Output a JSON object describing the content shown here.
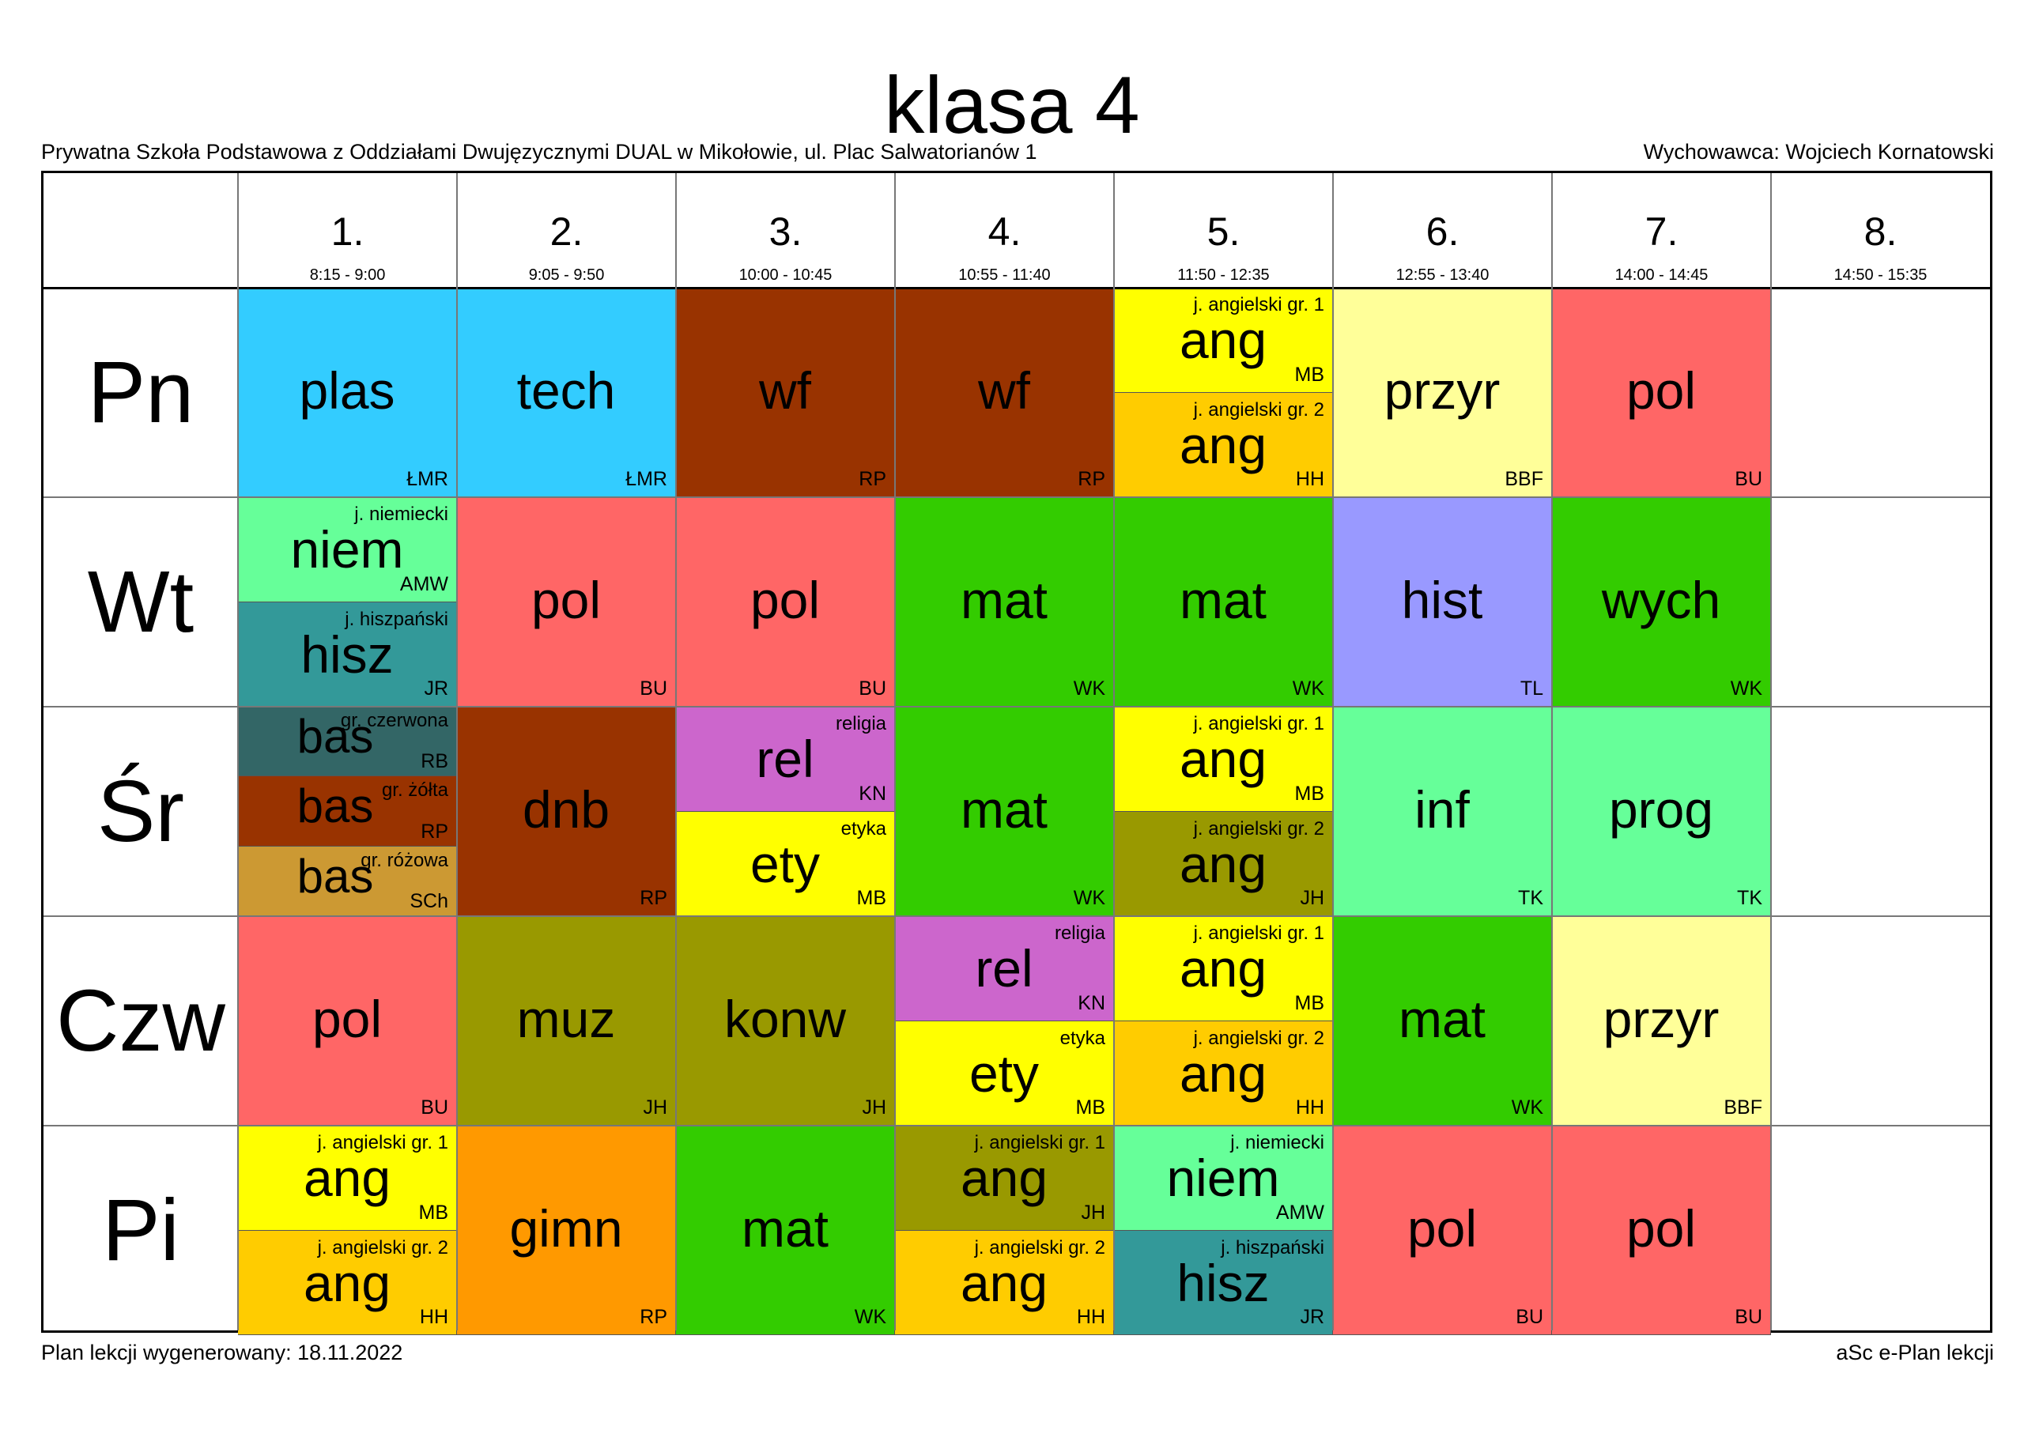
{
  "title": "klasa 4",
  "school": "Prywatna Szkoła Podstawowa z Oddziałami Dwujęzycznymi DUAL w Mikołowie, ul. Plac Salwatorianów 1",
  "teacher": "Wychowawca: Wojciech Kornatowski",
  "footer_left": "Plan lekcji wygenerowany: 18.11.2022",
  "footer_right": "aSc e-Plan lekcji",
  "periods": [
    {
      "num": "1.",
      "time": "8:15 - 9:00"
    },
    {
      "num": "2.",
      "time": "9:05 - 9:50"
    },
    {
      "num": "3.",
      "time": "10:00 - 10:45"
    },
    {
      "num": "4.",
      "time": "10:55 - 11:40"
    },
    {
      "num": "5.",
      "time": "11:50 - 12:35"
    },
    {
      "num": "6.",
      "time": "12:55 - 13:40"
    },
    {
      "num": "7.",
      "time": "14:00 - 14:45"
    },
    {
      "num": "8.",
      "time": "14:50 - 15:35"
    }
  ],
  "days": [
    "Pn",
    "Wt",
    "Śr",
    "Czw",
    "Pi"
  ],
  "colors": {
    "plas": "#33ccff",
    "tech": "#33ccff",
    "wf": "#993300",
    "ang_yellow": "#ffff00",
    "ang_orange": "#ffcc00",
    "przyr": "#ffff99",
    "pol": "#ff6666",
    "niem": "#66ff99",
    "hisz": "#339999",
    "mat": "#33cc00",
    "hist": "#9999ff",
    "wych": "#33cc00",
    "bas_red": "#336666",
    "bas_yellow": "#993300",
    "bas_pink": "#cc9933",
    "dnb": "#993300",
    "rel": "#cc66cc",
    "ety": "#ffff00",
    "ang_olive": "#999900",
    "inf": "#66ff99",
    "prog": "#66ff99",
    "muz": "#999900",
    "konw": "#999900",
    "gimn": "#ff9900"
  },
  "schedule": [
    [
      [
        {
          "subject": "plas",
          "teacher": "ŁMR",
          "color": "#33ccff"
        }
      ],
      [
        {
          "subject": "tech",
          "teacher": "ŁMR",
          "color": "#33ccff"
        }
      ],
      [
        {
          "subject": "wf",
          "teacher": "RP",
          "color": "#993300"
        }
      ],
      [
        {
          "subject": "wf",
          "teacher": "RP",
          "color": "#993300"
        }
      ],
      [
        {
          "subject": "ang",
          "group": "j. angielski gr. 1",
          "teacher": "MB",
          "color": "#ffff00"
        },
        {
          "subject": "ang",
          "group": "j. angielski gr. 2",
          "teacher": "HH",
          "color": "#ffcc00"
        }
      ],
      [
        {
          "subject": "przyr",
          "teacher": "BBF",
          "color": "#ffff99"
        }
      ],
      [
        {
          "subject": "pol",
          "teacher": "BU",
          "color": "#ff6666"
        }
      ],
      []
    ],
    [
      [
        {
          "subject": "niem",
          "group": "j. niemiecki",
          "teacher": "AMW",
          "color": "#66ff99"
        },
        {
          "subject": "hisz",
          "group": "j. hiszpański",
          "teacher": "JR",
          "color": "#339999"
        }
      ],
      [
        {
          "subject": "pol",
          "teacher": "BU",
          "color": "#ff6666"
        }
      ],
      [
        {
          "subject": "pol",
          "teacher": "BU",
          "color": "#ff6666"
        }
      ],
      [
        {
          "subject": "mat",
          "teacher": "WK",
          "color": "#33cc00"
        }
      ],
      [
        {
          "subject": "mat",
          "teacher": "WK",
          "color": "#33cc00"
        }
      ],
      [
        {
          "subject": "hist",
          "teacher": "TL",
          "color": "#9999ff"
        }
      ],
      [
        {
          "subject": "wych",
          "teacher": "WK",
          "color": "#33cc00"
        }
      ],
      []
    ],
    [
      [
        {
          "subject": "bas",
          "group": "gr. czerwona",
          "teacher": "RB",
          "color": "#336666"
        },
        {
          "subject": "bas",
          "group": "gr. żółta",
          "teacher": "RP",
          "color": "#993300"
        },
        {
          "subject": "bas",
          "group": "gr. różowa",
          "teacher": "SCh",
          "color": "#cc9933"
        }
      ],
      [
        {
          "subject": "dnb",
          "teacher": "RP",
          "color": "#993300"
        }
      ],
      [
        {
          "subject": "rel",
          "group": "religia",
          "teacher": "KN",
          "color": "#cc66cc"
        },
        {
          "subject": "ety",
          "group": "etyka",
          "teacher": "MB",
          "color": "#ffff00"
        }
      ],
      [
        {
          "subject": "mat",
          "teacher": "WK",
          "color": "#33cc00"
        }
      ],
      [
        {
          "subject": "ang",
          "group": "j. angielski gr. 1",
          "teacher": "MB",
          "color": "#ffff00"
        },
        {
          "subject": "ang",
          "group": "j. angielski gr. 2",
          "teacher": "JH",
          "color": "#999900"
        }
      ],
      [
        {
          "subject": "inf",
          "teacher": "TK",
          "color": "#66ff99"
        }
      ],
      [
        {
          "subject": "prog",
          "teacher": "TK",
          "color": "#66ff99"
        }
      ],
      []
    ],
    [
      [
        {
          "subject": "pol",
          "teacher": "BU",
          "color": "#ff6666"
        }
      ],
      [
        {
          "subject": "muz",
          "teacher": "JH",
          "color": "#999900"
        }
      ],
      [
        {
          "subject": "konw",
          "teacher": "JH",
          "color": "#999900"
        }
      ],
      [
        {
          "subject": "rel",
          "group": "religia",
          "teacher": "KN",
          "color": "#cc66cc"
        },
        {
          "subject": "ety",
          "group": "etyka",
          "teacher": "MB",
          "color": "#ffff00"
        }
      ],
      [
        {
          "subject": "ang",
          "group": "j. angielski gr. 1",
          "teacher": "MB",
          "color": "#ffff00"
        },
        {
          "subject": "ang",
          "group": "j. angielski gr. 2",
          "teacher": "HH",
          "color": "#ffcc00"
        }
      ],
      [
        {
          "subject": "mat",
          "teacher": "WK",
          "color": "#33cc00"
        }
      ],
      [
        {
          "subject": "przyr",
          "teacher": "BBF",
          "color": "#ffff99"
        }
      ],
      []
    ],
    [
      [
        {
          "subject": "ang",
          "group": "j. angielski gr. 1",
          "teacher": "MB",
          "color": "#ffff00"
        },
        {
          "subject": "ang",
          "group": "j. angielski gr. 2",
          "teacher": "HH",
          "color": "#ffcc00"
        }
      ],
      [
        {
          "subject": "gimn",
          "teacher": "RP",
          "color": "#ff9900"
        }
      ],
      [
        {
          "subject": "mat",
          "teacher": "WK",
          "color": "#33cc00"
        }
      ],
      [
        {
          "subject": "ang",
          "group": "j. angielski gr. 1",
          "teacher": "JH",
          "color": "#999900"
        },
        {
          "subject": "ang",
          "group": "j. angielski gr. 2",
          "teacher": "HH",
          "color": "#ffcc00"
        }
      ],
      [
        {
          "subject": "niem",
          "group": "j. niemiecki",
          "teacher": "AMW",
          "color": "#66ff99"
        },
        {
          "subject": "hisz",
          "group": "j. hiszpański",
          "teacher": "JR",
          "color": "#339999"
        }
      ],
      [
        {
          "subject": "pol",
          "teacher": "BU",
          "color": "#ff6666"
        }
      ],
      [
        {
          "subject": "pol",
          "teacher": "BU",
          "color": "#ff6666"
        }
      ],
      []
    ]
  ]
}
